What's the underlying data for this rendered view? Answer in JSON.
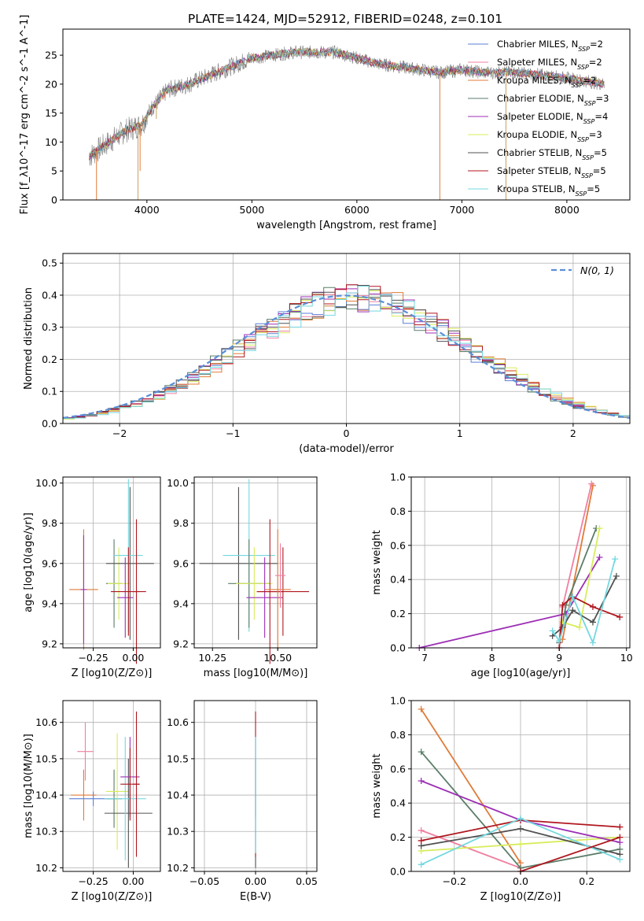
{
  "figure": {
    "title": "PLATE=1424, MJD=52912, FIBERID=0248, z=0.101"
  },
  "chart_data": [
    {
      "id": "spectrum",
      "type": "line",
      "xlabel": "wavelength [Angstrom, rest frame]",
      "ylabel": "Flux [f_λ10^-17 erg cm^-2 s^-1 A^-1]",
      "xlim": [
        3200,
        8600
      ],
      "ylim": [
        0,
        29.5
      ],
      "xticks": [
        4000,
        5000,
        6000,
        7000,
        8000
      ],
      "yticks": [
        0,
        5,
        10,
        15,
        20,
        25
      ],
      "grid": false,
      "legend_position": "top-right",
      "legend": [
        {
          "label": "Chabrier MILES, N_SSP=2",
          "color": "#5b7fd6"
        },
        {
          "label": "Salpeter MILES, N_SSP=2",
          "color": "#f07fa0"
        },
        {
          "label": "Kroupa MILES, N_SSP=2",
          "color": "#e07b39"
        },
        {
          "label": "Chabrier ELODIE, N_SSP=3",
          "color": "#5a7d68"
        },
        {
          "label": "Salpeter ELODIE, N_SSP=4",
          "color": "#9c2fb5"
        },
        {
          "label": "Kroupa ELODIE, N_SSP=3",
          "color": "#d8ec5a"
        },
        {
          "label": "Chabrier STELIB, N_SSP=5",
          "color": "#505050"
        },
        {
          "label": "Salpeter STELIB, N_SSP=5",
          "color": "#b0171f"
        },
        {
          "label": "Kroupa STELIB, N_SSP=5",
          "color": "#74d8e0"
        }
      ],
      "continuum": [
        [
          3450,
          7.5
        ],
        [
          3600,
          9.5
        ],
        [
          3800,
          12
        ],
        [
          3950,
          13
        ],
        [
          4050,
          16
        ],
        [
          4200,
          19
        ],
        [
          4400,
          20
        ],
        [
          4600,
          21.5
        ],
        [
          4800,
          23
        ],
        [
          5000,
          24.5
        ],
        [
          5200,
          25
        ],
        [
          5400,
          25.5
        ],
        [
          5600,
          25.5
        ],
        [
          5800,
          25.5
        ],
        [
          6000,
          24.5
        ],
        [
          6200,
          23.5
        ],
        [
          6400,
          23
        ],
        [
          6600,
          22.5
        ],
        [
          6800,
          22
        ],
        [
          7000,
          22.5
        ],
        [
          7200,
          22
        ],
        [
          7500,
          22
        ],
        [
          7800,
          21.5
        ],
        [
          8000,
          21
        ],
        [
          8200,
          20.5
        ],
        [
          8350,
          20
        ]
      ],
      "spikes": [
        [
          3520,
          0
        ],
        [
          3915,
          0
        ],
        [
          3935,
          5
        ],
        [
          4090,
          14
        ],
        [
          6790,
          0
        ],
        [
          7420,
          0
        ]
      ]
    },
    {
      "id": "residual-histogram",
      "type": "histogram",
      "xlabel": "(data-model)/error",
      "ylabel": "Normed distribution",
      "xlim": [
        -2.5,
        2.5
      ],
      "ylim": [
        0,
        0.53
      ],
      "xticks": [
        -2,
        -1,
        0,
        1,
        2
      ],
      "yticks": [
        0.0,
        0.1,
        0.2,
        0.3,
        0.4,
        0.5
      ],
      "grid": true,
      "legend_position": "top-right",
      "reference": {
        "label": "N(0, 1)",
        "color": "#5b8fd6",
        "mean": 0,
        "sigma": 1
      },
      "bin_width": 0.1
    },
    {
      "id": "age-vs-Z",
      "type": "errorbar",
      "xlabel": "Z [log10(Z/Z⊙)]",
      "ylabel": "age  [log10(age/yr)]",
      "xlim": [
        -0.44,
        0.17
      ],
      "ylim": [
        9.18,
        10.03
      ],
      "xticks": [
        -0.25,
        0.0
      ],
      "yticks": [
        9.2,
        9.4,
        9.6,
        9.8,
        10.0
      ],
      "grid": true,
      "points": [
        {
          "x": -0.31,
          "y": 9.47,
          "xerr": 0.09,
          "yerr": 0.3,
          "color": "#e07b39"
        },
        {
          "x": -0.31,
          "y": 9.47,
          "xerr": 0.02,
          "yerr": 0.27,
          "color": "#9c2fb5"
        },
        {
          "x": -0.12,
          "y": 9.5,
          "xerr": 0.05,
          "yerr": 0.22,
          "color": "#5a7d68"
        },
        {
          "x": -0.09,
          "y": 9.5,
          "xerr": 0.07,
          "yerr": 0.18,
          "color": "#d8ec5a"
        },
        {
          "x": -0.02,
          "y": 9.6,
          "xerr": 0.15,
          "yerr": 0.38,
          "color": "#505050"
        },
        {
          "x": -0.03,
          "y": 9.64,
          "xerr": 0.09,
          "yerr": 0.38,
          "color": "#74d8e0"
        },
        {
          "x": -0.05,
          "y": 9.43,
          "xerr": 0.05,
          "yerr": 0.2,
          "color": "#9c2fb5"
        },
        {
          "x": -0.03,
          "y": 9.46,
          "xerr": 0.11,
          "yerr": 0.22,
          "color": "#b0171f"
        },
        {
          "x": 0.02,
          "y": 9.46,
          "xerr": 0.02,
          "yerr": 0.36,
          "color": "#b0171f"
        }
      ]
    },
    {
      "id": "age-vs-mass",
      "type": "errorbar",
      "xlabel": "mass [log10(M/M⊙)]",
      "ylabel": "",
      "xlim": [
        10.18,
        10.65
      ],
      "ylim": [
        9.18,
        10.03
      ],
      "xticks": [
        10.25,
        10.5
      ],
      "yticks": [
        9.2,
        9.4,
        9.6,
        9.8,
        10.0
      ],
      "grid": true,
      "points": [
        {
          "x": 10.35,
          "y": 9.6,
          "xerr": 0.15,
          "yerr": 0.38,
          "color": "#505050"
        },
        {
          "x": 10.39,
          "y": 9.64,
          "xerr": 0.1,
          "yerr": 0.38,
          "color": "#74d8e0"
        },
        {
          "x": 10.39,
          "y": 9.5,
          "xerr": 0.08,
          "yerr": 0.22,
          "color": "#5a7d68"
        },
        {
          "x": 10.41,
          "y": 9.5,
          "xerr": 0.07,
          "yerr": 0.18,
          "color": "#d8ec5a"
        },
        {
          "x": 10.45,
          "y": 9.43,
          "xerr": 0.07,
          "yerr": 0.2,
          "color": "#9c2fb5"
        },
        {
          "x": 10.47,
          "y": 9.46,
          "xerr": 0.05,
          "yerr": 0.36,
          "color": "#b0171f"
        },
        {
          "x": 10.52,
          "y": 9.46,
          "xerr": 0.1,
          "yerr": 0.22,
          "color": "#b0171f"
        },
        {
          "x": 10.5,
          "y": 9.47,
          "xerr": 0.05,
          "yerr": 0.3,
          "color": "#e07b39"
        },
        {
          "x": 10.51,
          "y": 9.54,
          "xerr": 0.02,
          "yerr": 0.16,
          "color": "#f07fa0"
        }
      ]
    },
    {
      "id": "mass-weight-vs-age",
      "type": "line",
      "xlabel": "age  [log10(age/yr)]",
      "ylabel": "mass weight",
      "xlim": [
        6.8,
        10.05
      ],
      "ylim": [
        0,
        1
      ],
      "xticks": [
        7,
        8,
        9,
        10
      ],
      "yticks": [
        0.0,
        0.2,
        0.4,
        0.6,
        0.8,
        1.0
      ],
      "grid": true,
      "series": [
        {
          "color": "#e07b39",
          "x": [
            9.05,
            9.5
          ],
          "y": [
            0.05,
            0.95
          ]
        },
        {
          "color": "#f07fa0",
          "x": [
            9.05,
            9.48
          ],
          "y": [
            0.24,
            0.96
          ]
        },
        {
          "color": "#9c2fb5",
          "x": [
            6.92,
            9.1,
            9.6
          ],
          "y": [
            0.0,
            0.2,
            0.53
          ]
        },
        {
          "color": "#5a7d68",
          "x": [
            9.0,
            9.1,
            9.55
          ],
          "y": [
            0.03,
            0.25,
            0.7
          ]
        },
        {
          "color": "#d8ec5a",
          "x": [
            9.05,
            9.3,
            9.6
          ],
          "y": [
            0.15,
            0.12,
            0.7
          ]
        },
        {
          "color": "#505050",
          "x": [
            8.9,
            9.05,
            9.2,
            9.5,
            9.85
          ],
          "y": [
            0.07,
            0.12,
            0.22,
            0.15,
            0.42
          ]
        },
        {
          "color": "#b0171f",
          "x": [
            9.0,
            9.05,
            9.2,
            9.5,
            9.9
          ],
          "y": [
            0.0,
            0.25,
            0.3,
            0.24,
            0.18
          ]
        },
        {
          "color": "#74d8e0",
          "x": [
            8.9,
            9.0,
            9.2,
            9.5,
            9.83
          ],
          "y": [
            0.1,
            0.04,
            0.3,
            0.03,
            0.52
          ]
        }
      ]
    },
    {
      "id": "mass-vs-Z",
      "type": "errorbar",
      "xlabel": "Z [log10(Z/Z⊙)]",
      "ylabel": "mass [log10(M/M⊙)]",
      "xlim": [
        -0.44,
        0.17
      ],
      "ylim": [
        10.19,
        10.66
      ],
      "xticks": [
        -0.25,
        0.0
      ],
      "yticks": [
        10.2,
        10.3,
        10.4,
        10.5,
        10.6
      ],
      "grid": true,
      "points": [
        {
          "x": -0.3,
          "y": 10.52,
          "xerr": 0.05,
          "yerr": 0.08,
          "color": "#f07fa0"
        },
        {
          "x": -0.31,
          "y": 10.4,
          "xerr": 0.08,
          "yerr": 0.07,
          "color": "#e07b39"
        },
        {
          "x": -0.25,
          "y": 10.39,
          "xerr": 0.15,
          "yerr": 0.02,
          "color": "#5b7fd6"
        },
        {
          "x": -0.12,
          "y": 10.39,
          "xerr": 0.05,
          "yerr": 0.08,
          "color": "#5a7d68"
        },
        {
          "x": -0.1,
          "y": 10.41,
          "xerr": 0.07,
          "yerr": 0.16,
          "color": "#d8ec5a"
        },
        {
          "x": -0.03,
          "y": 10.35,
          "xerr": 0.15,
          "yerr": 0.15,
          "color": "#505050"
        },
        {
          "x": -0.05,
          "y": 10.39,
          "xerr": 0.13,
          "yerr": 0.17,
          "color": "#74d8e0"
        },
        {
          "x": -0.02,
          "y": 10.45,
          "xerr": 0.06,
          "yerr": 0.11,
          "color": "#9c2fb5"
        },
        {
          "x": -0.02,
          "y": 10.43,
          "xerr": 0.06,
          "yerr": 0.1,
          "color": "#b0171f"
        },
        {
          "x": 0.02,
          "y": 10.43,
          "xerr": 0.02,
          "yerr": 0.2,
          "color": "#b0171f"
        }
      ]
    },
    {
      "id": "mass-vs-ebv",
      "type": "errorbar",
      "xlabel": "E(B-V)",
      "ylabel": "",
      "xlim": [
        -0.06,
        0.06
      ],
      "ylim": [
        10.19,
        10.66
      ],
      "xticks": [
        -0.05,
        0.0,
        0.05
      ],
      "yticks": [
        10.2,
        10.3,
        10.4,
        10.5,
        10.6
      ],
      "grid": true,
      "points": [
        {
          "x": 0.0,
          "y": 10.35,
          "xerr": 0.0,
          "yerr": 0.15,
          "color": "#505050"
        },
        {
          "x": 0.0,
          "y": 10.43,
          "xerr": 0.0,
          "yerr": 0.2,
          "color": "#b0171f"
        },
        {
          "x": 0.0,
          "y": 10.45,
          "xerr": 0.0,
          "yerr": 0.11,
          "color": "#9c2fb5"
        },
        {
          "x": 0.0,
          "y": 10.4,
          "xerr": 0.0,
          "yerr": 0.16,
          "color": "#74d8e0"
        }
      ]
    },
    {
      "id": "mass-weight-vs-Z",
      "type": "line",
      "xlabel": "Z [log10(Z/Z⊙)]",
      "ylabel": "mass weight",
      "xlim": [
        -0.33,
        0.33
      ],
      "ylim": [
        0,
        1
      ],
      "xticks": [
        -0.2,
        0.0,
        0.2
      ],
      "yticks": [
        0.0,
        0.2,
        0.4,
        0.6,
        0.8,
        1.0
      ],
      "grid": true,
      "series": [
        {
          "color": "#e07b39",
          "x": [
            -0.3,
            0.0
          ],
          "y": [
            0.95,
            0.05
          ]
        },
        {
          "color": "#f07fa0",
          "x": [
            -0.3,
            0.0
          ],
          "y": [
            0.24,
            0.02
          ]
        },
        {
          "color": "#5a7d68",
          "x": [
            -0.3,
            0.0,
            0.3
          ],
          "y": [
            0.7,
            0.02,
            0.13
          ]
        },
        {
          "color": "#d8ec5a",
          "x": [
            -0.3,
            0.0,
            0.3
          ],
          "y": [
            0.12,
            0.16,
            0.2
          ]
        },
        {
          "color": "#9c2fb5",
          "x": [
            -0.3,
            0.0,
            0.3
          ],
          "y": [
            0.53,
            0.3,
            0.17
          ]
        },
        {
          "color": "#505050",
          "x": [
            -0.3,
            0.0,
            0.3
          ],
          "y": [
            0.15,
            0.25,
            0.1
          ]
        },
        {
          "color": "#b0171f",
          "x": [
            -0.3,
            0.0,
            0.3
          ],
          "y": [
            0.18,
            0.3,
            0.26
          ]
        },
        {
          "color": "#74d8e0",
          "x": [
            -0.3,
            0.0,
            0.3
          ],
          "y": [
            0.04,
            0.31,
            0.07
          ]
        },
        {
          "color": "#b0171f",
          "x": [
            0.0,
            0.3
          ],
          "y": [
            0.0,
            0.2
          ]
        }
      ]
    }
  ]
}
